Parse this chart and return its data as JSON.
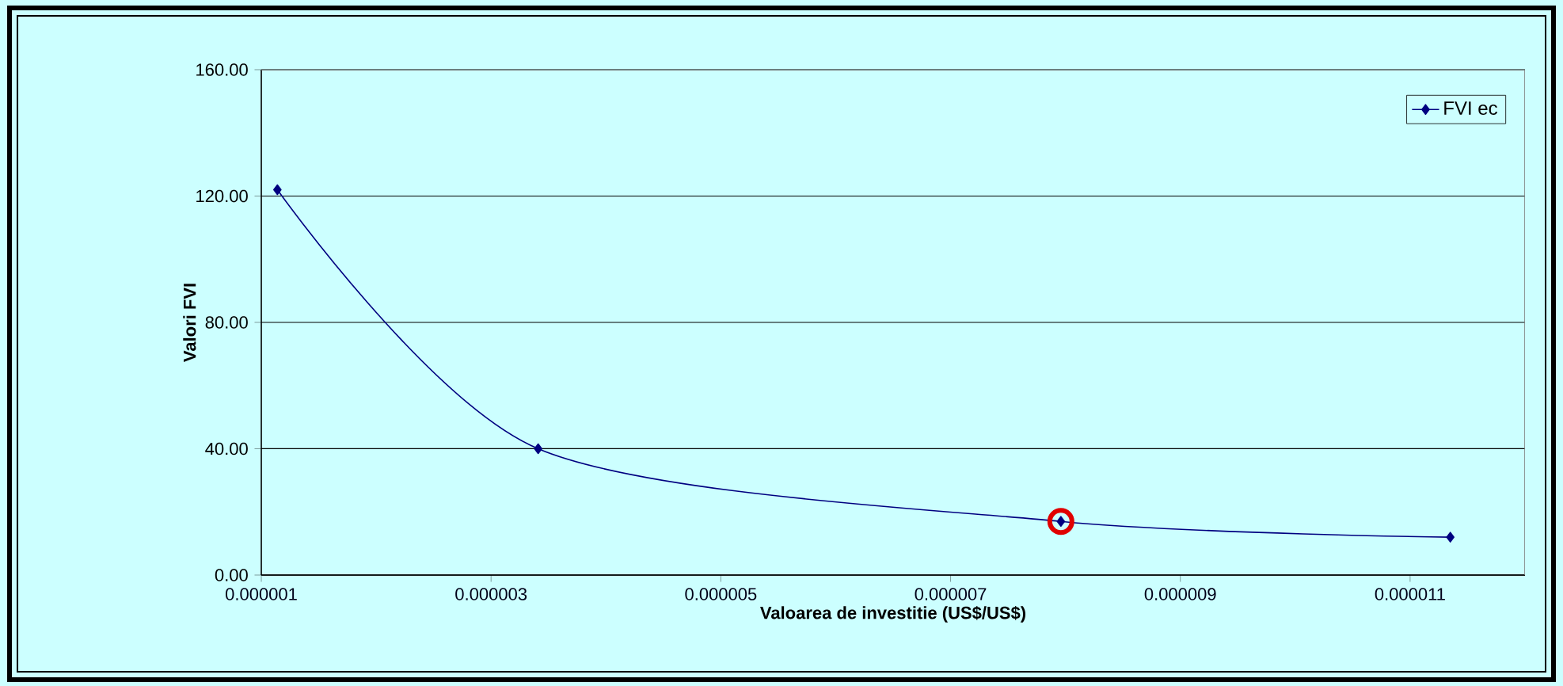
{
  "chart_data": {
    "type": "line",
    "xlabel": "Valoarea de investitie (US$/US$)",
    "ylabel": "Valori FVI",
    "series": [
      {
        "name": "FVI ec",
        "color": "#000080",
        "x": [
          1.14e-06,
          3.41e-06,
          7.96e-06,
          1.135e-05
        ],
        "values": [
          122,
          40,
          17,
          12
        ],
        "marker": "diamond"
      },
      {
        "type": "scatter",
        "color": "#e00000",
        "x": [
          7.96e-06
        ],
        "values": [
          17
        ],
        "marker": "circle"
      }
    ],
    "xlim": [
      1e-06,
      1.2e-05
    ],
    "xticks": [
      {
        "value": 1e-06,
        "label": "0.000001"
      },
      {
        "value": 3e-06,
        "label": "0.000003"
      },
      {
        "value": 5e-06,
        "label": "0.000005"
      },
      {
        "value": 7e-06,
        "label": "0.000007"
      },
      {
        "value": 9e-06,
        "label": "0.000009"
      },
      {
        "value": 1.1e-05,
        "label": "0.000011"
      }
    ],
    "ylim": [
      0,
      160
    ],
    "yticks": [
      {
        "value": 0,
        "label": "0.00"
      },
      {
        "value": 40,
        "label": "40.00"
      },
      {
        "value": 80,
        "label": "80.00"
      },
      {
        "value": 120,
        "label": "120.00"
      },
      {
        "value": 160,
        "label": "160.00"
      }
    ],
    "grid": "y",
    "legend": "top right",
    "line_style": "solid"
  }
}
